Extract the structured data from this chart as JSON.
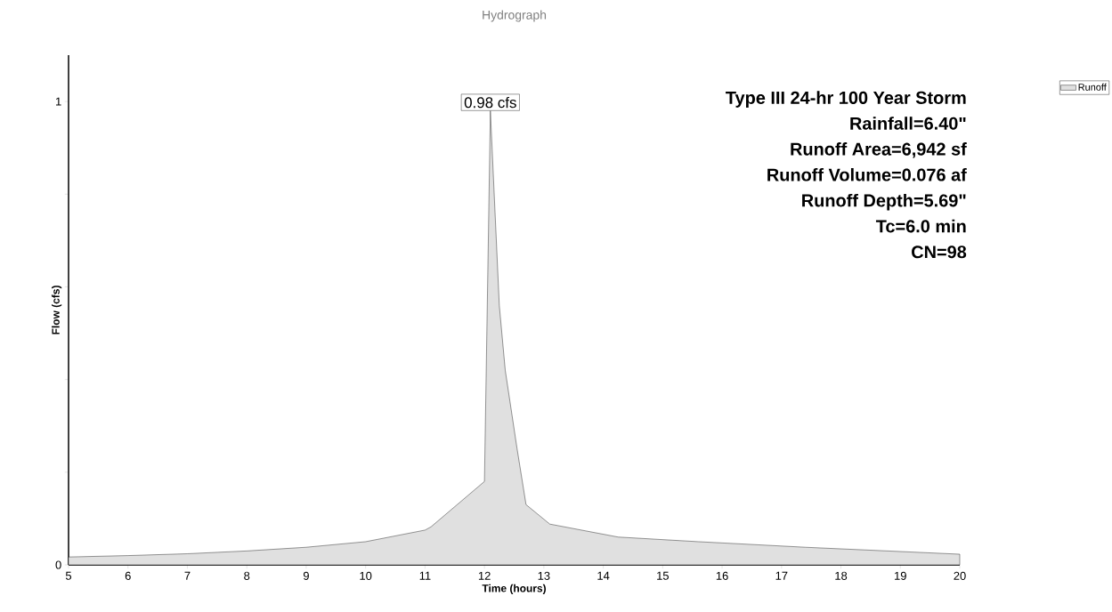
{
  "chart_data": {
    "type": "area",
    "title": "Hydrograph",
    "xlabel": "Time  (hours)",
    "ylabel": "Flow  (cfs)",
    "x": [
      5,
      6,
      7,
      8,
      9,
      10,
      11,
      11.1,
      12.0,
      12.1,
      12.25,
      12.35,
      12.55,
      12.7,
      13.1,
      14.25,
      15.6,
      17.4,
      20
    ],
    "series": [
      {
        "name": "Runoff",
        "color": "#000000",
        "values": [
          0.017,
          0.02,
          0.024,
          0.03,
          0.038,
          0.05,
          0.075,
          0.082,
          0.18,
          0.98,
          0.56,
          0.42,
          0.25,
          0.13,
          0.088,
          0.06,
          0.05,
          0.038,
          0.023
        ]
      }
    ],
    "annotations": [
      {
        "text": "0.98 cfs",
        "x": 12.1,
        "y": 0.98
      },
      "Type III 24-hr 100 Year Storm",
      "Rainfall=6.40\"",
      "Runoff Area=6,942 sf",
      "Runoff Volume=0.076 af",
      "Runoff Depth=5.69\"",
      "Tc=6.0 min",
      "CN=98"
    ],
    "xlim": [
      5,
      20
    ],
    "ylim": [
      0,
      1.1
    ],
    "xticks": [
      5,
      6,
      7,
      8,
      9,
      10,
      11,
      12,
      13,
      14,
      15,
      16,
      17,
      18,
      19,
      20
    ],
    "yticks": [
      0,
      {
        "value": 0.2,
        "label": null
      },
      {
        "value": 0.4,
        "label": null
      },
      {
        "value": 0.6,
        "label": null
      },
      {
        "value": 0.8,
        "label": null
      },
      1
    ],
    "grid": false,
    "legend": "top right",
    "marker": "none",
    "line_style": "solid"
  }
}
